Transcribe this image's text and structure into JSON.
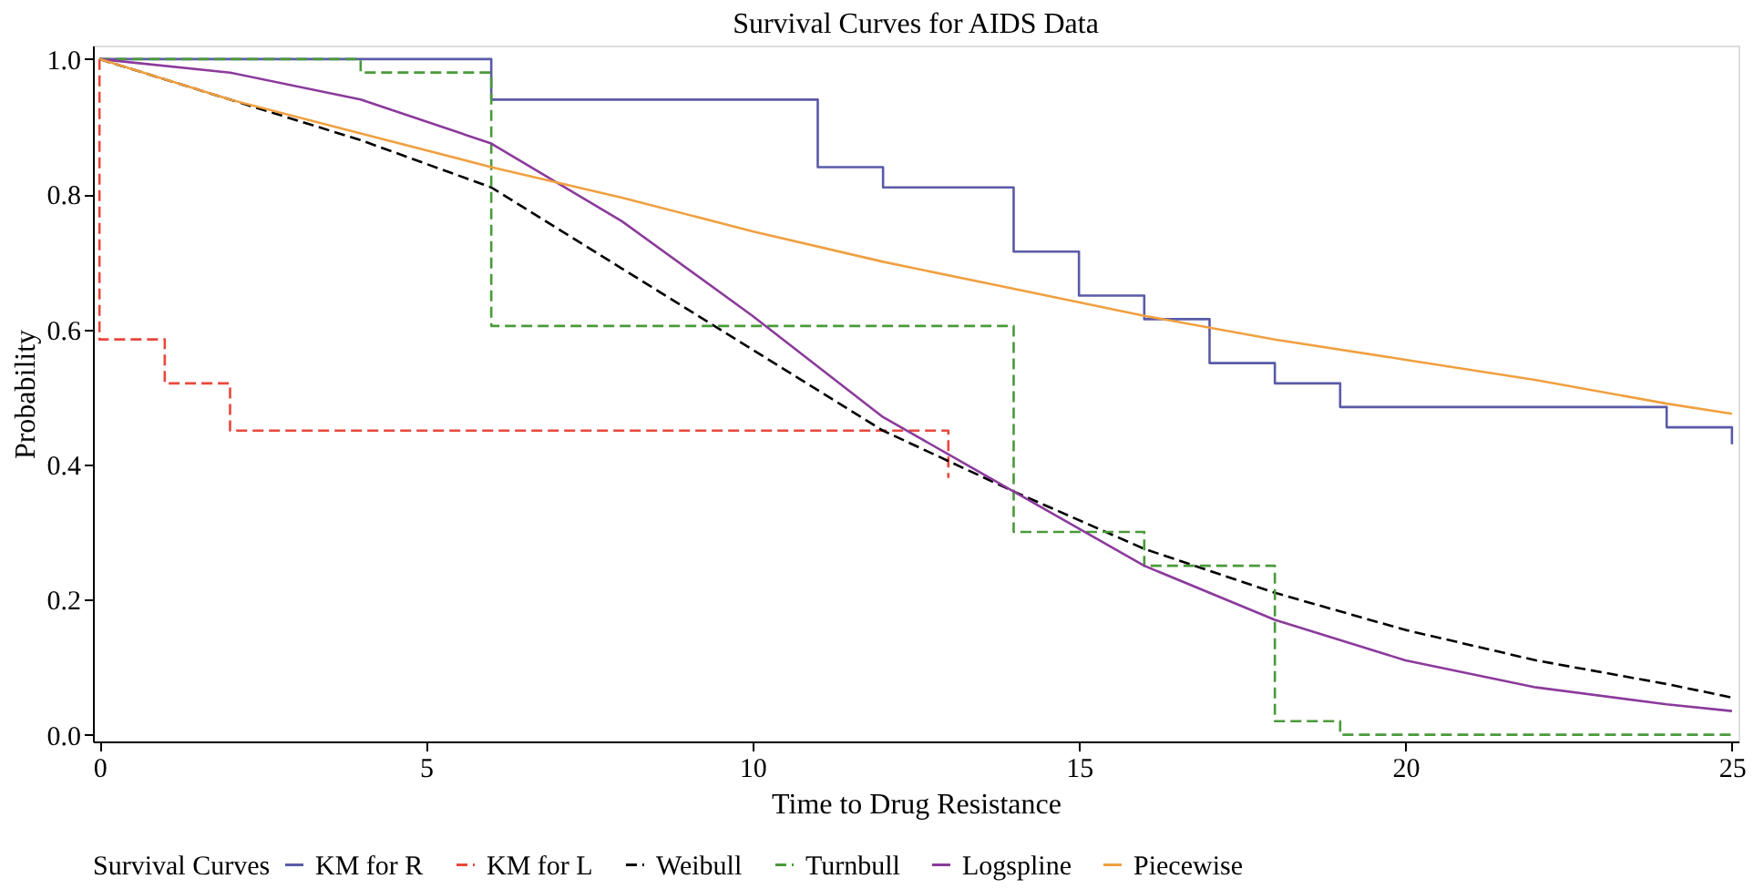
{
  "chart_data": {
    "type": "line",
    "title": "Survival Curves for AIDS Data",
    "xlabel": "Time to Drug Resistance",
    "ylabel": "Probability",
    "legend_title": "Survival Curves",
    "legend": "bottom",
    "grid": false,
    "marker": "none",
    "xlim": [
      -0.1,
      25.1
    ],
    "ylim": [
      -0.01,
      1.02
    ],
    "xticks": [
      0,
      5,
      10,
      15,
      20,
      25
    ],
    "yticks": [
      {
        "value": 0,
        "label": "0.0"
      },
      0.2,
      0.4,
      0.6,
      0.8,
      {
        "value": 1,
        "label": "1.0"
      }
    ],
    "series": [
      {
        "name": "KM for R",
        "type": "step",
        "color": "#5a5aa8",
        "line_style": "solid",
        "x": [
          0,
          6,
          11,
          12,
          14,
          15,
          16,
          17,
          18,
          19,
          24,
          25
        ],
        "values": [
          1.0,
          0.94,
          0.84,
          0.81,
          0.715,
          0.65,
          0.615,
          0.55,
          0.52,
          0.485,
          0.455,
          0.43
        ]
      },
      {
        "name": "KM for L",
        "type": "step",
        "color": "#e8473c",
        "line_style": "dashed",
        "x": [
          0,
          0,
          1,
          2,
          13
        ],
        "values": [
          1.0,
          0.585,
          0.52,
          0.45,
          0.38
        ]
      },
      {
        "name": "Weibull",
        "type": "line",
        "color": "#000000",
        "line_style": "dashed",
        "x": [
          0,
          2,
          4,
          6,
          8,
          10,
          12,
          14,
          16,
          18,
          20,
          22,
          24,
          25
        ],
        "values": [
          1.0,
          0.94,
          0.88,
          0.81,
          0.69,
          0.57,
          0.45,
          0.36,
          0.275,
          0.21,
          0.155,
          0.11,
          0.075,
          0.055
        ]
      },
      {
        "name": "Turnbull",
        "type": "step",
        "color": "#4a9a3a",
        "line_style": "dashed",
        "x": [
          0,
          4,
          6,
          14,
          16,
          18,
          19,
          25
        ],
        "values": [
          1.0,
          0.98,
          0.605,
          0.3,
          0.25,
          0.02,
          0.0,
          0.0
        ]
      },
      {
        "name": "Logspline",
        "type": "line",
        "color": "#8b3a9b",
        "line_style": "solid",
        "x": [
          0,
          2,
          4,
          6,
          8,
          10,
          12,
          14,
          16,
          18,
          20,
          22,
          24,
          25
        ],
        "values": [
          1.0,
          0.98,
          0.94,
          0.875,
          0.76,
          0.62,
          0.47,
          0.36,
          0.25,
          0.17,
          0.11,
          0.07,
          0.045,
          0.035
        ]
      },
      {
        "name": "Piecewise",
        "type": "line",
        "color": "#f0a040",
        "line_style": "solid",
        "x": [
          0,
          2,
          4,
          6,
          8,
          10,
          12,
          14,
          16,
          18,
          20,
          22,
          24,
          25
        ],
        "values": [
          1.0,
          0.94,
          0.89,
          0.84,
          0.795,
          0.745,
          0.7,
          0.66,
          0.62,
          0.585,
          0.555,
          0.525,
          0.49,
          0.475
        ]
      }
    ]
  }
}
